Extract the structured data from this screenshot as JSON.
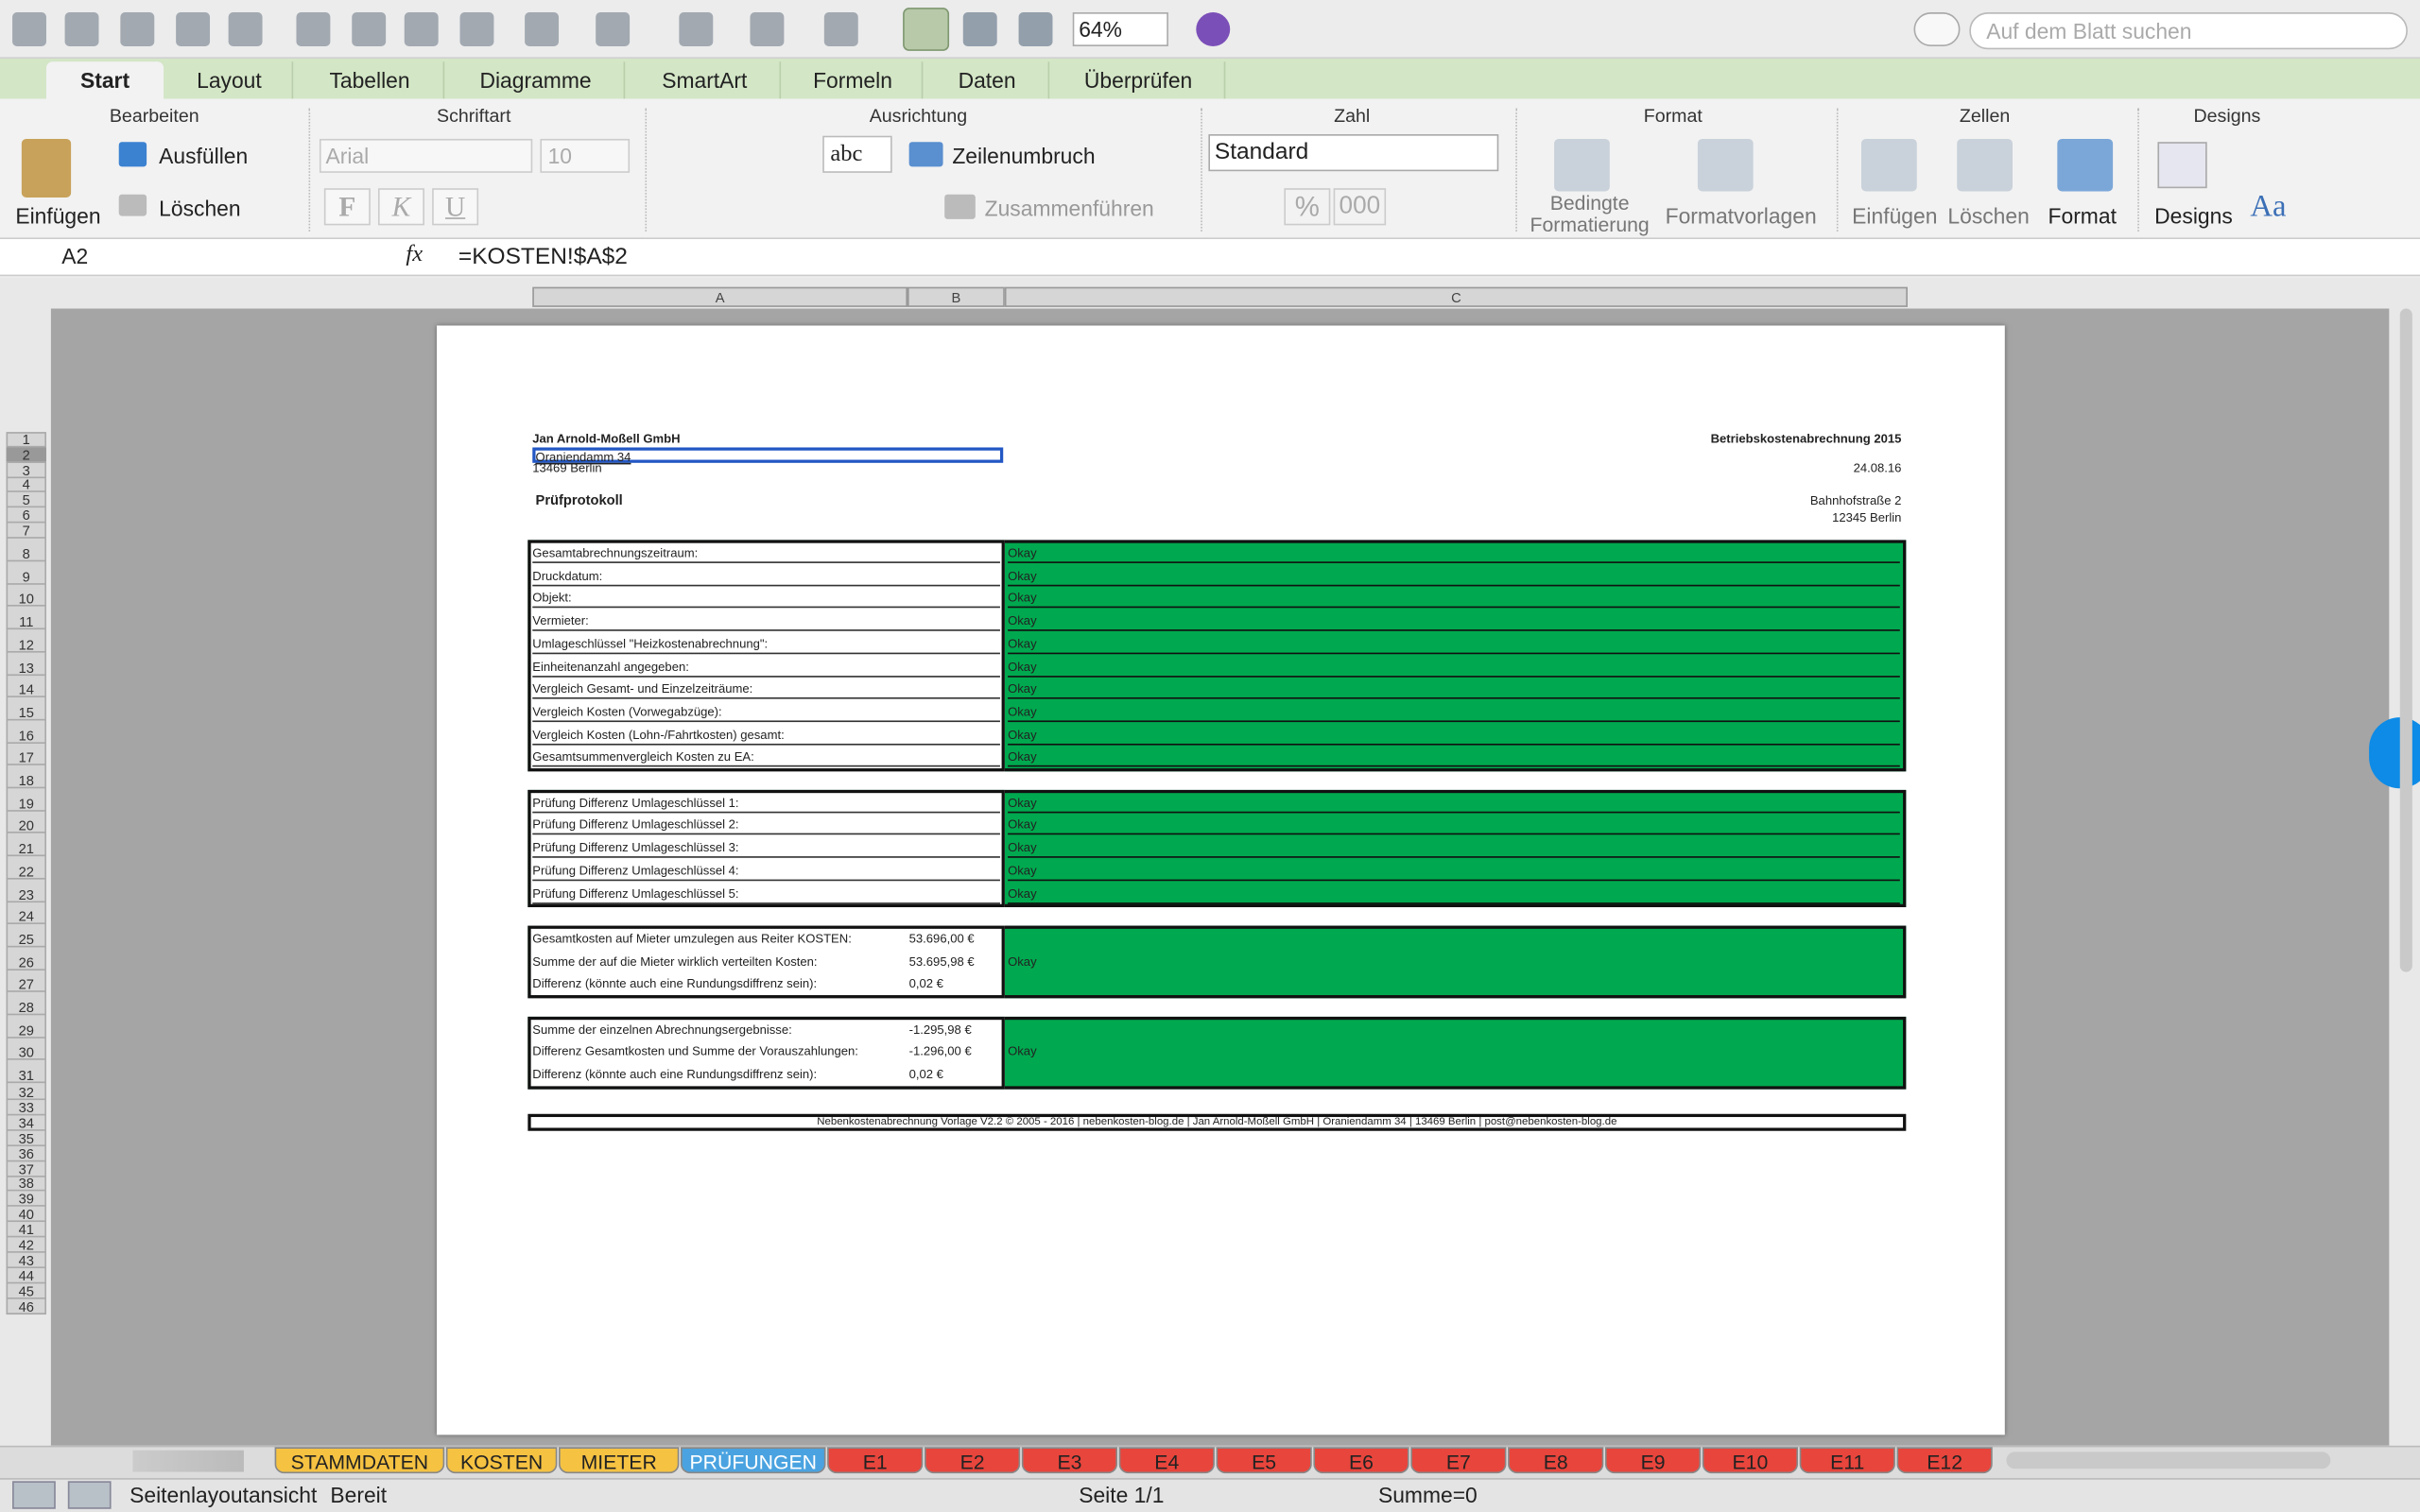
{
  "toolbar": {
    "zoom": "64%",
    "search_placeholder": "Auf dem Blatt suchen"
  },
  "ribbon_tabs": [
    "Start",
    "Layout",
    "Tabellen",
    "Diagramme",
    "SmartArt",
    "Formeln",
    "Daten",
    "Überprüfen"
  ],
  "ribbon": {
    "groups": [
      "Bearbeiten",
      "Schriftart",
      "Ausrichtung",
      "Zahl",
      "Format",
      "Zellen",
      "Designs"
    ],
    "bearbeiten": {
      "paste": "Einfügen",
      "fill": "Ausfüllen",
      "clear": "Löschen"
    },
    "schriftart": {
      "font": "Arial",
      "size": "10",
      "bold": "F",
      "italic": "K",
      "underline": "U"
    },
    "ausrichtung": {
      "wrap_style": "abc",
      "wrap": "Zeilenumbruch",
      "merge": "Zusammenführen"
    },
    "zahl": {
      "format": "Standard",
      "percent": "%",
      "thousands": "000"
    },
    "format": {
      "conditional": "Bedingte Formatierung",
      "styles": "Formatvorlagen"
    },
    "zellen": {
      "insert": "Einfügen",
      "delete": "Löschen",
      "format": "Format"
    },
    "designs": {
      "designs": "Designs",
      "fonts": "Aa"
    }
  },
  "formula_bar": {
    "cell": "A2",
    "fx": "fx",
    "formula": "=KOSTEN!$A$2"
  },
  "columns": [
    "A",
    "B",
    "C"
  ],
  "row_numbers": [
    1,
    2,
    3,
    4,
    5,
    6,
    7,
    8,
    9,
    10,
    11,
    12,
    13,
    14,
    15,
    16,
    17,
    18,
    19,
    20,
    21,
    22,
    23,
    24,
    25,
    26,
    27,
    28,
    29,
    30,
    31,
    32,
    33,
    34,
    35,
    36,
    37,
    38,
    39,
    40,
    41,
    42,
    43,
    44,
    45,
    46
  ],
  "sheet": {
    "company": "Jan Arnold-Moßell GmbH",
    "street": "Oraniendamm 34",
    "city": "13469 Berlin",
    "title": "Prüfprotokoll",
    "doc_title": "Betriebskostenabrechnung 2015",
    "date": "24.08.16",
    "object_street": "Bahnhofstraße 2",
    "object_city": "12345 Berlin",
    "checks_1": [
      {
        "label": "Gesamtabrechnungszeitraum:",
        "status": "Okay"
      },
      {
        "label": "Druckdatum:",
        "status": "Okay"
      },
      {
        "label": "Objekt:",
        "status": "Okay"
      },
      {
        "label": "Vermieter:",
        "status": "Okay"
      },
      {
        "label": "Umlageschlüssel \"Heizkostenabrechnung\":",
        "status": "Okay"
      },
      {
        "label": "Einheitenanzahl angegeben:",
        "status": "Okay"
      },
      {
        "label": "Vergleich Gesamt- und Einzelzeiträume:",
        "status": "Okay"
      },
      {
        "label": "Vergleich Kosten (Vorwegabzüge):",
        "status": "Okay"
      },
      {
        "label": "Vergleich Kosten (Lohn-/Fahrtkosten) gesamt:",
        "status": "Okay"
      },
      {
        "label": "Gesamtsummenvergleich Kosten zu EA:",
        "status": "Okay"
      }
    ],
    "checks_2": [
      {
        "label": "Prüfung Differenz Umlageschlüssel 1:",
        "status": "Okay"
      },
      {
        "label": "Prüfung Differenz Umlageschlüssel 2:",
        "status": "Okay"
      },
      {
        "label": "Prüfung Differenz Umlageschlüssel 3:",
        "status": "Okay"
      },
      {
        "label": "Prüfung Differenz Umlageschlüssel 4:",
        "status": "Okay"
      },
      {
        "label": "Prüfung Differenz Umlageschlüssel 5:",
        "status": "Okay"
      }
    ],
    "block_3": {
      "status": "Okay",
      "rows": [
        {
          "label": "Gesamtkosten auf Mieter umzulegen aus Reiter KOSTEN:",
          "value": "53.696,00 €"
        },
        {
          "label": "Summe der auf die Mieter wirklich verteilten Kosten:",
          "value": "53.695,98 €"
        },
        {
          "label": "Differenz (könnte auch eine Rundungsdiffrenz sein):",
          "value": "0,02 €"
        }
      ]
    },
    "block_4": {
      "status": "Okay",
      "rows": [
        {
          "label": "Summe der einzelnen Abrechnungsergebnisse:",
          "value": "-1.295,98 €"
        },
        {
          "label": "Differenz Gesamtkosten und Summe der Vorauszahlungen:",
          "value": "-1.296,00 €"
        },
        {
          "label": "Differenz (könnte auch eine Rundungsdiffrenz sein):",
          "value": "0,02 €"
        }
      ]
    },
    "footer": "Nebenkostenabrechnung Vorlage V2.2 © 2005 - 2016 | nebenkosten-blog.de | Jan Arnold-Moßell GmbH | Oraniendamm 34 | 13469 Berlin | post@nebenkosten-blog.de"
  },
  "sheet_tabs": [
    {
      "name": "STAMMDATEN",
      "color": "#f5c242"
    },
    {
      "name": "KOSTEN",
      "color": "#f5c242"
    },
    {
      "name": "MIETER",
      "color": "#f5c242"
    },
    {
      "name": "PRÜFUNGEN",
      "color": "#4aa3e0"
    },
    {
      "name": "E1",
      "color": "#e8453c"
    },
    {
      "name": "E2",
      "color": "#e8453c"
    },
    {
      "name": "E3",
      "color": "#e8453c"
    },
    {
      "name": "E4",
      "color": "#e8453c"
    },
    {
      "name": "E5",
      "color": "#e8453c"
    },
    {
      "name": "E6",
      "color": "#e8453c"
    },
    {
      "name": "E7",
      "color": "#e8453c"
    },
    {
      "name": "E8",
      "color": "#e8453c"
    },
    {
      "name": "E9",
      "color": "#e8453c"
    },
    {
      "name": "E10",
      "color": "#e8453c"
    },
    {
      "name": "E11",
      "color": "#e8453c"
    },
    {
      "name": "E12",
      "color": "#e8453c"
    }
  ],
  "status_bar": {
    "view": "Seitenlayoutansicht",
    "state": "Bereit",
    "page": "Seite 1/1",
    "sum": "Summe=0"
  }
}
